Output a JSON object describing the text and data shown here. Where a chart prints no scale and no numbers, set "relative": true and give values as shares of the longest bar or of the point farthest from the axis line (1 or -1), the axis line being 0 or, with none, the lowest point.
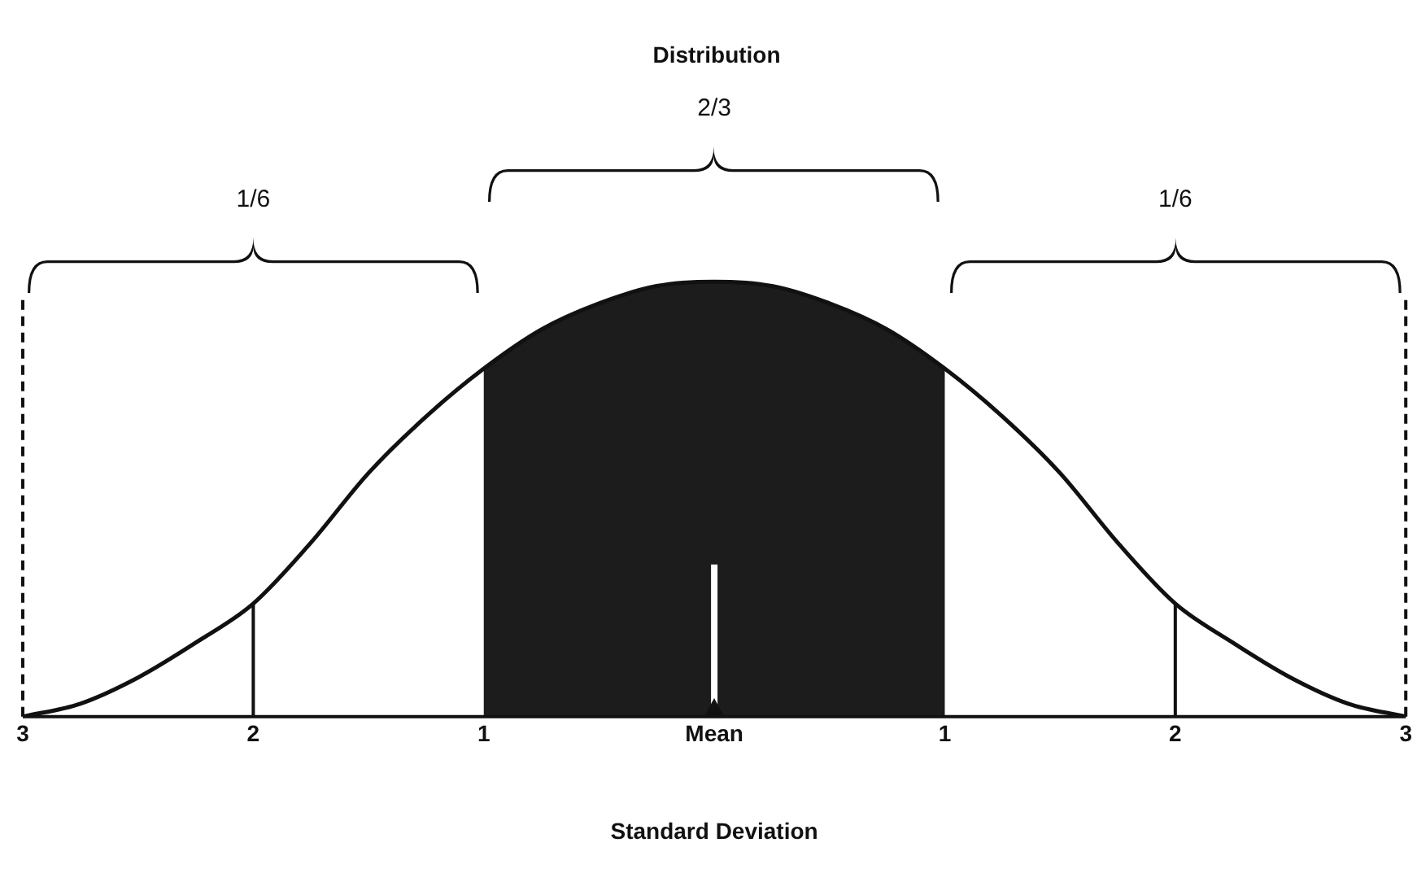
{
  "chart_data": {
    "type": "line",
    "title": "Distribution",
    "xlabel": "Standard Deviation",
    "relative": true,
    "xlim": [
      -3,
      3
    ],
    "xticks": [
      {
        "value": -3,
        "label": "3"
      },
      {
        "value": -2,
        "label": "2"
      },
      {
        "value": -1,
        "label": "1"
      },
      {
        "value": 0,
        "label": "Mean"
      },
      {
        "value": 1,
        "label": "1"
      },
      {
        "value": 2,
        "label": "2"
      },
      {
        "value": 3,
        "label": "3"
      }
    ],
    "series": [
      {
        "color": "#111111",
        "x": [
          -3,
          -2.75,
          -2.5,
          -2.25,
          -2,
          -1.75,
          -1.5,
          -1.25,
          -1,
          -0.75,
          -0.5,
          -0.25,
          0,
          0.25,
          0.5,
          0.75,
          1,
          1.25,
          1.5,
          1.75,
          2,
          2.25,
          2.5,
          2.75,
          3
        ],
        "values": [
          0,
          0.03,
          0.09,
          0.17,
          0.26,
          0.4,
          0.56,
          0.69,
          0.8,
          0.89,
          0.95,
          0.99,
          1,
          0.99,
          0.95,
          0.89,
          0.8,
          0.69,
          0.56,
          0.4,
          0.26,
          0.17,
          0.09,
          0.03,
          0
        ]
      }
    ],
    "ref_lines": [
      {
        "axis": "x",
        "value": -3,
        "color": "#111111",
        "line_style": "dashed"
      },
      {
        "axis": "x",
        "value": -2,
        "color": "#111111",
        "line_style": "solid"
      },
      {
        "axis": "x",
        "value": 0,
        "color": "#ffffff",
        "line_style": "solid"
      },
      {
        "axis": "x",
        "value": 2,
        "color": "#111111",
        "line_style": "solid"
      },
      {
        "axis": "x",
        "value": 3,
        "color": "#111111",
        "line_style": "dashed"
      }
    ],
    "bands": [
      {
        "axis": "x",
        "from": -1,
        "to": 1,
        "color": "#1c1c1c"
      }
    ],
    "annotations": [
      "1/6",
      "2/3",
      "1/6"
    ],
    "grid": false,
    "legend": false
  }
}
